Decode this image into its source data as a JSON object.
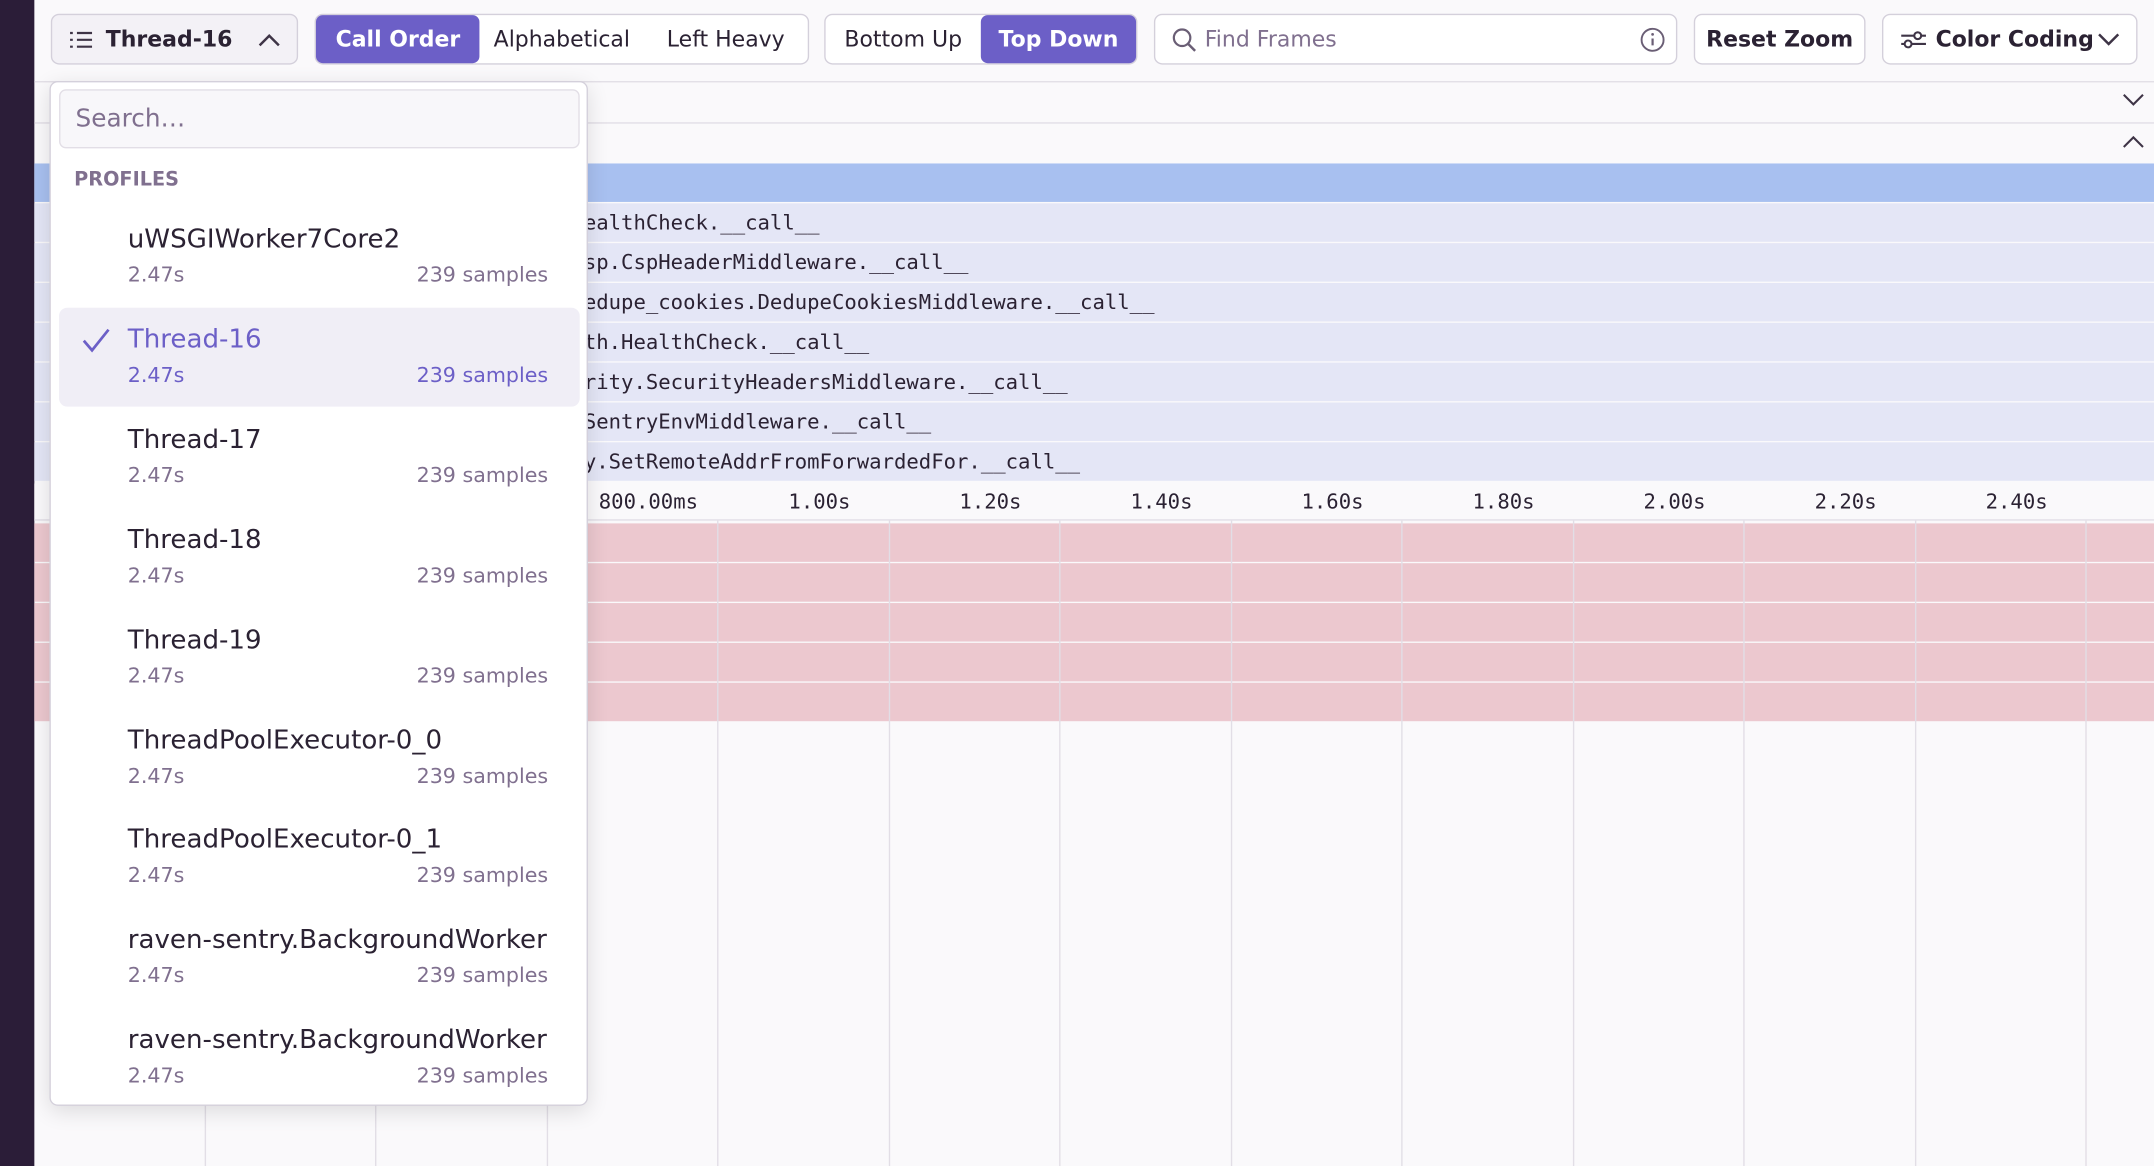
{
  "toolbar": {
    "thread_select": "Thread-16",
    "sort": [
      {
        "label": "Call Order",
        "active": true
      },
      {
        "label": "Alphabetical",
        "active": false
      },
      {
        "label": "Left Heavy",
        "active": false
      }
    ],
    "view": [
      {
        "label": "Bottom Up",
        "active": false
      },
      {
        "label": "Top Down",
        "active": true
      }
    ],
    "search_placeholder": "Find Frames",
    "reset_zoom": "Reset Zoom",
    "color_coding": "Color Coding"
  },
  "dropdown": {
    "search_placeholder": "Search…",
    "section": "PROFILES",
    "items": [
      {
        "name": "uWSGIWorker7Core2",
        "duration": "2.47s",
        "samples": "239 samples",
        "selected": false
      },
      {
        "name": "Thread-16",
        "duration": "2.47s",
        "samples": "239 samples",
        "selected": true
      },
      {
        "name": "Thread-17",
        "duration": "2.47s",
        "samples": "239 samples",
        "selected": false
      },
      {
        "name": "Thread-18",
        "duration": "2.47s",
        "samples": "239 samples",
        "selected": false
      },
      {
        "name": "Thread-19",
        "duration": "2.47s",
        "samples": "239 samples",
        "selected": false
      },
      {
        "name": "ThreadPoolExecutor-0_0",
        "duration": "2.47s",
        "samples": "239 samples",
        "selected": false
      },
      {
        "name": "ThreadPoolExecutor-0_1",
        "duration": "2.47s",
        "samples": "239 samples",
        "selected": false
      },
      {
        "name": "raven-sentry.BackgroundWorker",
        "duration": "2.47s",
        "samples": "239 samples",
        "selected": false
      },
      {
        "name": "raven-sentry.BackgroundWorker",
        "duration": "2.47s",
        "samples": "239 samples",
        "selected": false
      }
    ]
  },
  "flamegraph": {
    "frames": [
      "ealthCheck.__call__",
      "sp.CspHeaderMiddleware.__call__",
      "edupe_cookies.DedupeCookiesMiddleware.__call__",
      "th.HealthCheck.__call__",
      "rity.SecurityHeadersMiddleware.__call__",
      "SentryEnvMiddleware.__call__",
      "y.SetRemoteAddrFromForwardedFor.__call__"
    ]
  },
  "timeline": {
    "ticks": [
      "800.00ms",
      "1.00s",
      "1.20s",
      "1.40s",
      "1.60s",
      "1.80s",
      "2.00s",
      "2.20s",
      "2.40s"
    ]
  }
}
